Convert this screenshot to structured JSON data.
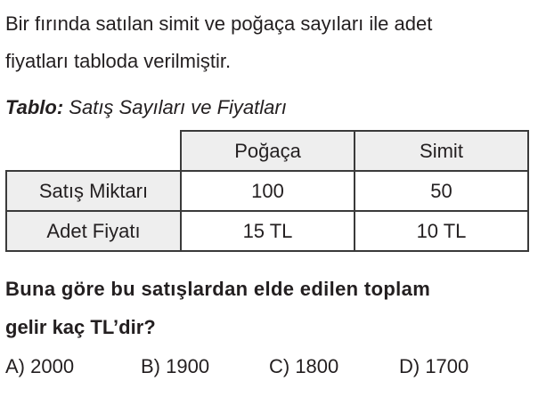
{
  "intro": {
    "line1": "Bir fırında satılan simit ve poğaça sayıları ile adet",
    "line2": "fiyatları tabloda verilmiştir."
  },
  "caption": {
    "label": "Tablo:",
    "text": " Satış Sayıları ve Fiyatları"
  },
  "table": {
    "headers": [
      "",
      "Poğaça",
      "Simit"
    ],
    "rows": [
      {
        "label": "Satış Miktarı",
        "cells": [
          "100",
          "50"
        ]
      },
      {
        "label": "Adet Fiyatı",
        "cells": [
          "15 TL",
          "10 TL"
        ]
      }
    ]
  },
  "question": {
    "line1": "Buna göre bu satışlardan elde edilen toplam",
    "line2": "gelir kaç TL’dir?"
  },
  "options": [
    "A) 2000",
    "B) 1900",
    "C) 1800",
    "D) 1700"
  ]
}
